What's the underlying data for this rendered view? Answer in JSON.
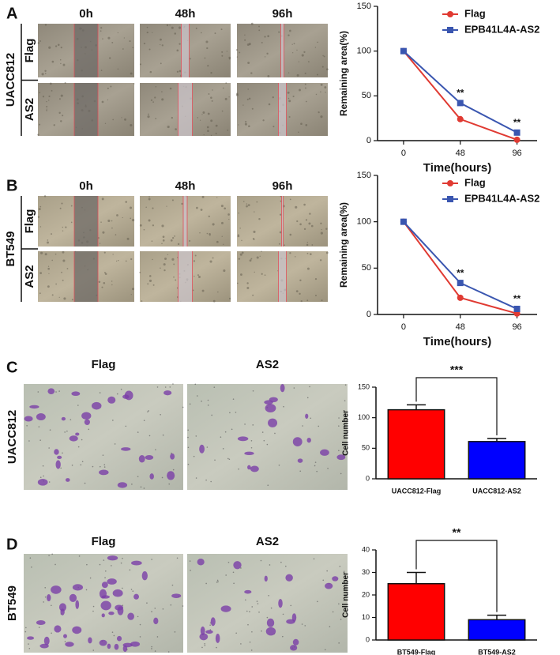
{
  "panels": [
    {
      "letter": "A",
      "cell_line": "UACC812",
      "time_labels": [
        "0h",
        "48h",
        "96h"
      ],
      "row_labels": [
        "Flag",
        "AS2"
      ]
    },
    {
      "letter": "B",
      "cell_line": "BT549",
      "time_labels": [
        "0h",
        "48h",
        "96h"
      ],
      "row_labels": [
        "Flag",
        "AS2"
      ]
    },
    {
      "letter": "C",
      "cell_line": "UACC812",
      "column_labels": [
        "Flag",
        "AS2"
      ]
    },
    {
      "letter": "D",
      "cell_line": "BT549",
      "column_labels": [
        "Flag",
        "AS2"
      ]
    }
  ],
  "chart_data": [
    {
      "type": "line",
      "x": [
        0,
        48,
        96
      ],
      "xlim": [
        -22,
        113
      ],
      "xticks": [
        0,
        48,
        96
      ],
      "ylim": [
        0,
        150
      ],
      "yticks": [
        0,
        50,
        100,
        150
      ],
      "xlabel": "Time(hours)",
      "ylabel": "Remaining area(%)",
      "legend": "upper right",
      "series": [
        {
          "name": "Flag",
          "color": "#e03a32",
          "marker": "circle",
          "values": [
            100,
            24,
            1
          ]
        },
        {
          "name": "EPB41L4A-AS2",
          "color": "#3a56b0",
          "marker": "square",
          "values": [
            100,
            42,
            9
          ]
        }
      ],
      "annotations": [
        null,
        "**",
        "**"
      ]
    },
    {
      "type": "line",
      "x": [
        0,
        48,
        96
      ],
      "xlim": [
        -22,
        113
      ],
      "xticks": [
        0,
        48,
        96
      ],
      "ylim": [
        0,
        150
      ],
      "yticks": [
        0,
        50,
        100,
        150
      ],
      "xlabel": "Time(hours)",
      "ylabel": "Remaining area(%)",
      "legend": "upper right",
      "series": [
        {
          "name": "Flag",
          "color": "#e03a32",
          "marker": "circle",
          "values": [
            100,
            18,
            1
          ]
        },
        {
          "name": "EPB41L4A-AS2",
          "color": "#3a56b0",
          "marker": "square",
          "values": [
            100,
            34,
            6
          ]
        }
      ],
      "annotations": [
        null,
        "**",
        "**"
      ]
    },
    {
      "type": "bar",
      "categories": [
        "UACC812-Flag",
        "UACC812-AS2"
      ],
      "values": [
        113,
        61
      ],
      "errors": [
        8,
        5
      ],
      "colors": [
        "#ff0000",
        "#0000ff"
      ],
      "ylim": [
        0,
        150
      ],
      "yticks": [
        0,
        50,
        100,
        150
      ],
      "ylabel": "Cell number",
      "significance": "***"
    },
    {
      "type": "bar",
      "categories": [
        "BT549-Flag",
        "BT549-AS2"
      ],
      "values": [
        25,
        9
      ],
      "errors": [
        5,
        2
      ],
      "colors": [
        "#ff0000",
        "#0000ff"
      ],
      "ylim": [
        0,
        40
      ],
      "yticks": [
        0,
        10,
        20,
        30,
        40
      ],
      "ylabel": "Cell number",
      "significance": "**"
    }
  ]
}
